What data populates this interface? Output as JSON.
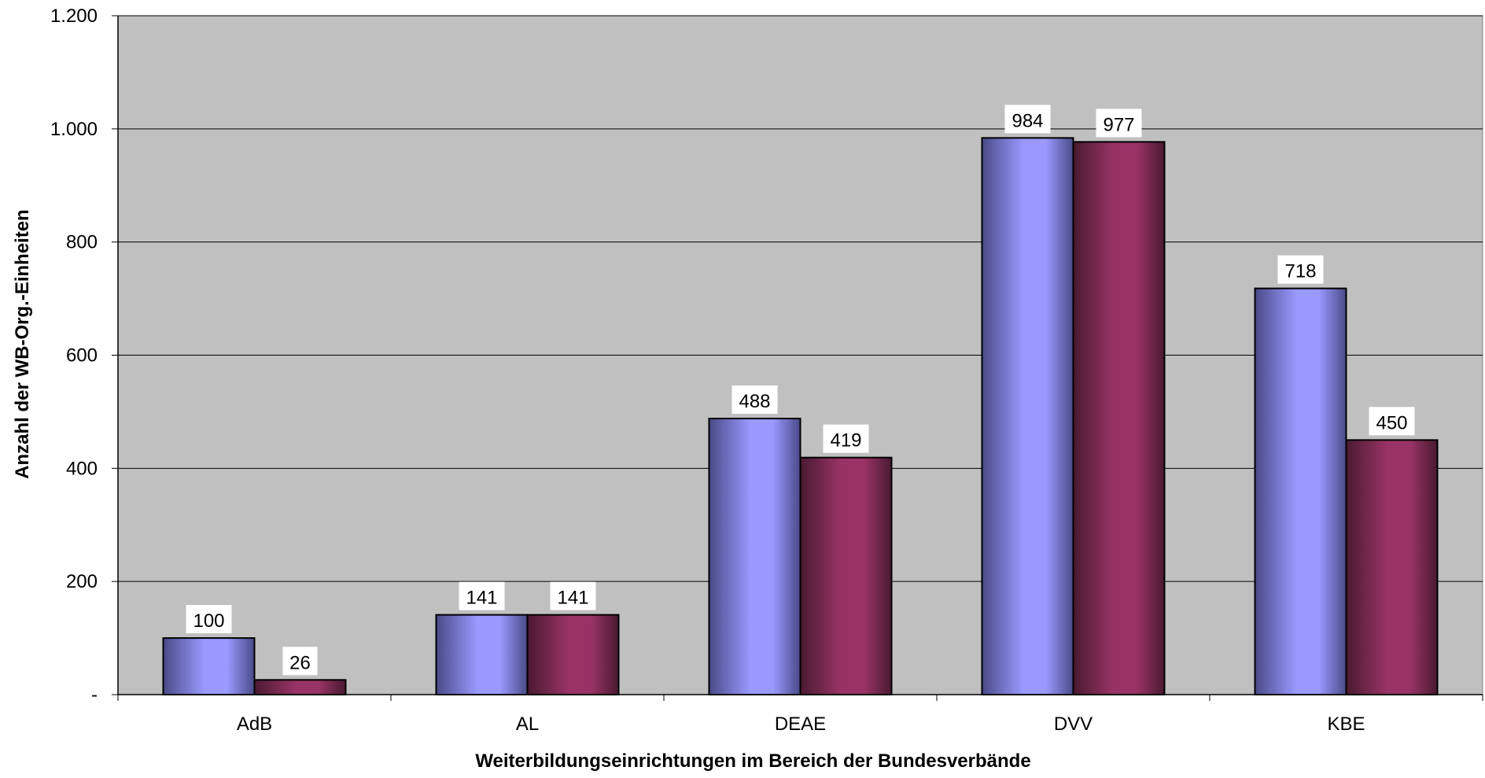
{
  "chart_data": {
    "type": "bar",
    "title": "",
    "xlabel": "Weiterbildungseinrichtungen im Bereich der Bundesverbände",
    "ylabel": "Anzahl der WB-Org.-Einheiten",
    "categories": [
      "AdB",
      "AL",
      "DEAE",
      "DVV",
      "KBE"
    ],
    "series": [
      {
        "values": [
          100,
          141,
          488,
          984,
          718
        ],
        "value_labels": [
          "100",
          "141",
          "488",
          "984",
          "718"
        ],
        "color": "#9999ff",
        "color_dark": "#4a4a88"
      },
      {
        "values": [
          26,
          141,
          419,
          977,
          450
        ],
        "value_labels": [
          "26",
          "141",
          "419",
          "977",
          "450"
        ],
        "color": "#993366",
        "color_dark": "#4a1a30"
      }
    ],
    "ylim": [
      0,
      1200
    ],
    "yticks": [
      0,
      200,
      400,
      600,
      800,
      1000,
      1200
    ],
    "ytick_labels": [
      "-",
      "200",
      "400",
      "600",
      "800",
      "1.000",
      "1.200"
    ],
    "grid": true,
    "legend": "none",
    "plot_background": "#c0c0c0"
  }
}
